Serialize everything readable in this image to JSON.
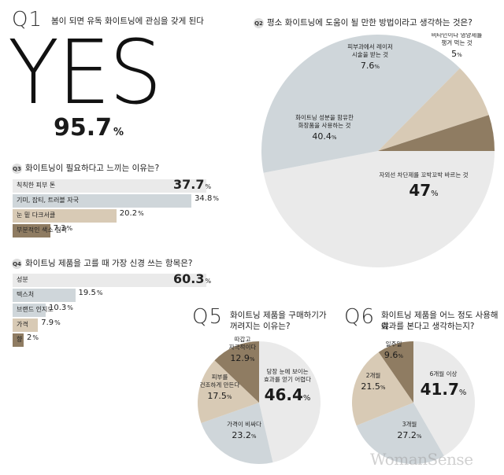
{
  "q1": {
    "num": "Q1",
    "title": "봄이 되면 유독 화이트닝에 관심을 갖게 된다",
    "answer": "YES",
    "value": "95.7",
    "unit": "%"
  },
  "q2": {
    "badge": "Q2",
    "title": "평소 화이트닝에 도움이 될 만한 방법이라고 생각하는 것은?"
  },
  "q3": {
    "badge": "Q3",
    "title": "화이트닝이 필요하다고 느끼는 이유는?"
  },
  "q4": {
    "badge": "Q4",
    "title": "화이트닝 제품을 고를 때 가장 신경 쓰는 항목은?"
  },
  "q5": {
    "num": "Q5",
    "title1": "화이트닝 제품을 구매하기가",
    "title2": "꺼려지는 이유는?"
  },
  "q6": {
    "num": "Q6",
    "title1": "화이트닝 제품을 어느 정도 사용해야",
    "title2": "효과를 본다고 생각하는지?"
  },
  "watermark": "WomanSense",
  "colors": {
    "light": "#eaeaea",
    "blue": "#cfd6da",
    "beige": "#d8cab5",
    "brown": "#8f7c62",
    "darkbrown": "#7a6650"
  },
  "chart_data": [
    {
      "id": "q2",
      "type": "pie",
      "title": "평소 화이트닝에 도움이 될 만한 방법이라고 생각하는 것은?",
      "slices": [
        {
          "label": "자외선 차단제를 꼬박꼬박 바르는 것",
          "value": 47,
          "display": "47",
          "color": "#eaeaea"
        },
        {
          "label": "화이트닝 성분을 함유한 화장품을 사용하는 것",
          "value": 40.4,
          "display": "40.4",
          "color": "#cfd6da"
        },
        {
          "label": "피부과에서 레이저 시술을 받는 것",
          "value": 7.6,
          "display": "7.6",
          "color": "#d8cab5"
        },
        {
          "label": "비타민이나 영양제를 챙겨 먹는 것",
          "value": 5,
          "display": "5",
          "color": "#8f7c62"
        }
      ]
    },
    {
      "id": "q3",
      "type": "bar",
      "title": "화이트닝이 필요하다고 느끼는 이유는?",
      "categories": [
        "칙칙한 피부 톤",
        "기미, 잡티, 트러블 자국",
        "눈 밑 다크서클",
        "부분적인 색소 침착"
      ],
      "values": [
        37.7,
        34.8,
        20.2,
        7.3
      ],
      "colors": [
        "#eaeaea",
        "#cfd6da",
        "#d8cab5",
        "#8f7c62"
      ]
    },
    {
      "id": "q4",
      "type": "bar",
      "title": "화이트닝 제품을 고를 때 가장 신경 쓰는 항목은?",
      "categories": [
        "성분",
        "텍스처",
        "브랜드 인지도",
        "가격",
        "향"
      ],
      "values": [
        60.3,
        19.5,
        10.3,
        7.9,
        2
      ],
      "colors": [
        "#eaeaea",
        "#cfd6da",
        "#cfd6da",
        "#d8cab5",
        "#8f7c62"
      ]
    },
    {
      "id": "q5",
      "type": "pie",
      "title": "화이트닝 제품을 구매하기가 꺼려지는 이유는?",
      "slices": [
        {
          "label": "당장 눈에 보이는 효과를 얻기 어렵다",
          "value": 46.4,
          "display": "46.4",
          "color": "#eaeaea"
        },
        {
          "label": "가격이 비싸다",
          "value": 23.2,
          "display": "23.2",
          "color": "#cfd6da"
        },
        {
          "label": "피부를 건조하게 만든다",
          "value": 17.5,
          "display": "17.5",
          "color": "#d8cab5"
        },
        {
          "label": "따갑고 자극적이다",
          "value": 12.9,
          "display": "12.9",
          "color": "#8f7c62"
        }
      ]
    },
    {
      "id": "q6",
      "type": "pie",
      "title": "화이트닝 제품을 어느 정도 사용해야 효과를 본다고 생각하는지?",
      "slices": [
        {
          "label": "6개월 이상",
          "value": 41.7,
          "display": "41.7",
          "color": "#eaeaea"
        },
        {
          "label": "3개월",
          "value": 27.2,
          "display": "27.2",
          "color": "#cfd6da"
        },
        {
          "label": "2개월",
          "value": 21.5,
          "display": "21.5",
          "color": "#d8cab5"
        },
        {
          "label": "일주일",
          "value": 9.6,
          "display": "9.6",
          "color": "#8f7c62"
        }
      ]
    }
  ]
}
